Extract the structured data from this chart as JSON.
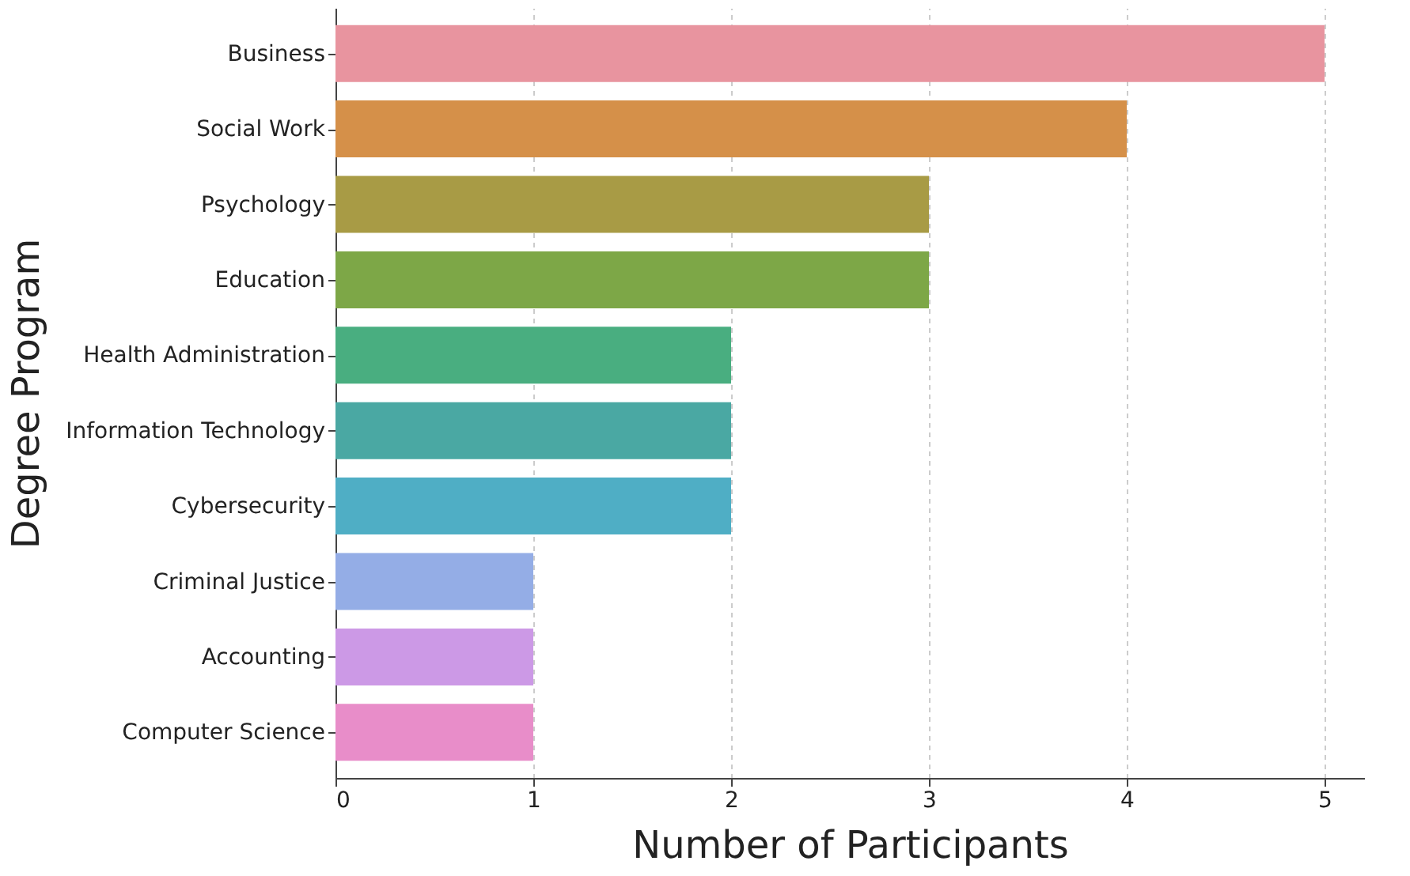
{
  "chart_data": {
    "type": "bar",
    "orientation": "horizontal",
    "xlabel": "Number of Participants",
    "ylabel": "Degree Program",
    "categories": [
      "Business",
      "Social Work",
      "Psychology",
      "Education",
      "Health Administration",
      "Information Technology",
      "Cybersecurity",
      "Criminal Justice",
      "Accounting",
      "Computer Science"
    ],
    "values": [
      5,
      4,
      3,
      3,
      2,
      2,
      2,
      1,
      1,
      1
    ],
    "colors": [
      "#e8949f",
      "#d59049",
      "#a89b45",
      "#7da747",
      "#49ae80",
      "#4aa8a3",
      "#4faec5",
      "#94ade6",
      "#cc99e6",
      "#e88dc9"
    ],
    "xlim": [
      0,
      5.2
    ],
    "xticks": [
      0,
      1,
      2,
      3,
      4,
      5
    ],
    "grid": "x"
  }
}
